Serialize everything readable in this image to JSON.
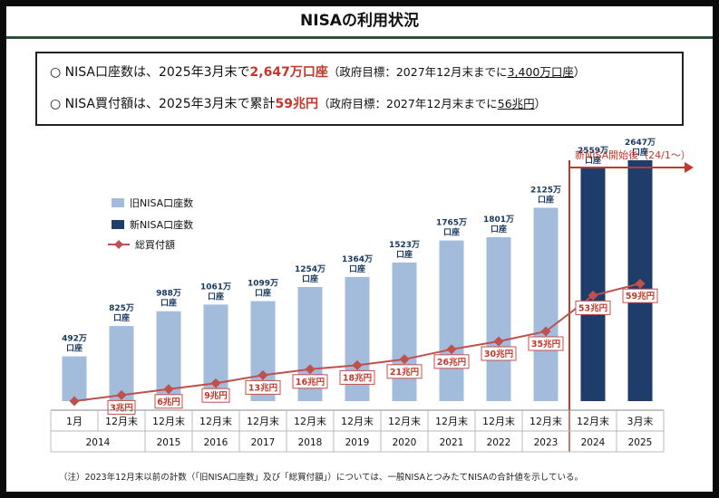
{
  "title": "NISAの利用状況",
  "summary": {
    "line1": {
      "bullet": "○",
      "text_a": "NISA口座数は、2025年3月末で",
      "highlight": "2,647万口座",
      "note_a": "（政府目標：2027年12月末までに",
      "note_ul": "3,400万口座",
      "note_b": "）"
    },
    "line2": {
      "bullet": "○",
      "text_a": "NISA買付額は、2025年3月末で累計",
      "highlight": "59兆円",
      "note_a": "（政府目標：2027年12月末までに",
      "note_ul": "56兆円",
      "note_b": "）"
    }
  },
  "footnote": "（注）2023年12月末以前の計数（「旧NISA口座数」及び「総買付額」）については、一般NISAとつみたてNISAの合計値を示している。",
  "colors": {
    "old_bar": "#a3bcdc",
    "new_bar": "#1f3d6b",
    "line": "#c0504d",
    "label_text_old": "#17375e",
    "label_text_line": "#c0392b"
  },
  "chart_data": {
    "type": "bar",
    "categories": [
      "1月",
      "12月末",
      "12月末",
      "12月末",
      "12月末",
      "12月末",
      "12月末",
      "12月末",
      "12月末",
      "12月末",
      "12月末",
      "12月末",
      "3月末"
    ],
    "years": [
      "2014",
      "2015",
      "2016",
      "2017",
      "2018",
      "2019",
      "2020",
      "2021",
      "2022",
      "2023",
      "2024",
      "2025"
    ],
    "year_spans": [
      2,
      1,
      1,
      1,
      1,
      1,
      1,
      1,
      1,
      1,
      1,
      1
    ],
    "series": [
      {
        "name": "旧NISA口座数",
        "kind": "bar",
        "values": [
          492,
          825,
          988,
          1061,
          1099,
          1254,
          1364,
          1523,
          1765,
          1801,
          2125,
          null,
          null
        ],
        "labels": [
          "492万口座",
          "825万口座",
          "988万口座",
          "1061万口座",
          "1099万口座",
          "1254万口座",
          "1364万口座",
          "1523万口座",
          "1765万口座",
          "1801万口座",
          "2125万口座",
          "",
          ""
        ]
      },
      {
        "name": "新NISA口座数",
        "kind": "bar",
        "values": [
          null,
          null,
          null,
          null,
          null,
          null,
          null,
          null,
          null,
          null,
          null,
          2559,
          2647
        ],
        "labels": [
          "",
          "",
          "",
          "",
          "",
          "",
          "",
          "",
          "",
          "",
          "",
          "2559万口座",
          "2647万口座"
        ]
      },
      {
        "name": "総買付額",
        "kind": "line",
        "values": [
          0,
          3,
          6,
          9,
          13,
          16,
          18,
          21,
          26,
          30,
          35,
          53,
          59
        ],
        "labels": [
          "",
          "3兆円",
          "6兆円",
          "9兆円",
          "13兆円",
          "16兆円",
          "18兆円",
          "21兆円",
          "26兆円",
          "30兆円",
          "35兆円",
          "53兆円",
          "59兆円"
        ]
      }
    ],
    "annotation": "新NISA開始後（24/1～）",
    "legend_position": "top-left",
    "grid": false
  }
}
